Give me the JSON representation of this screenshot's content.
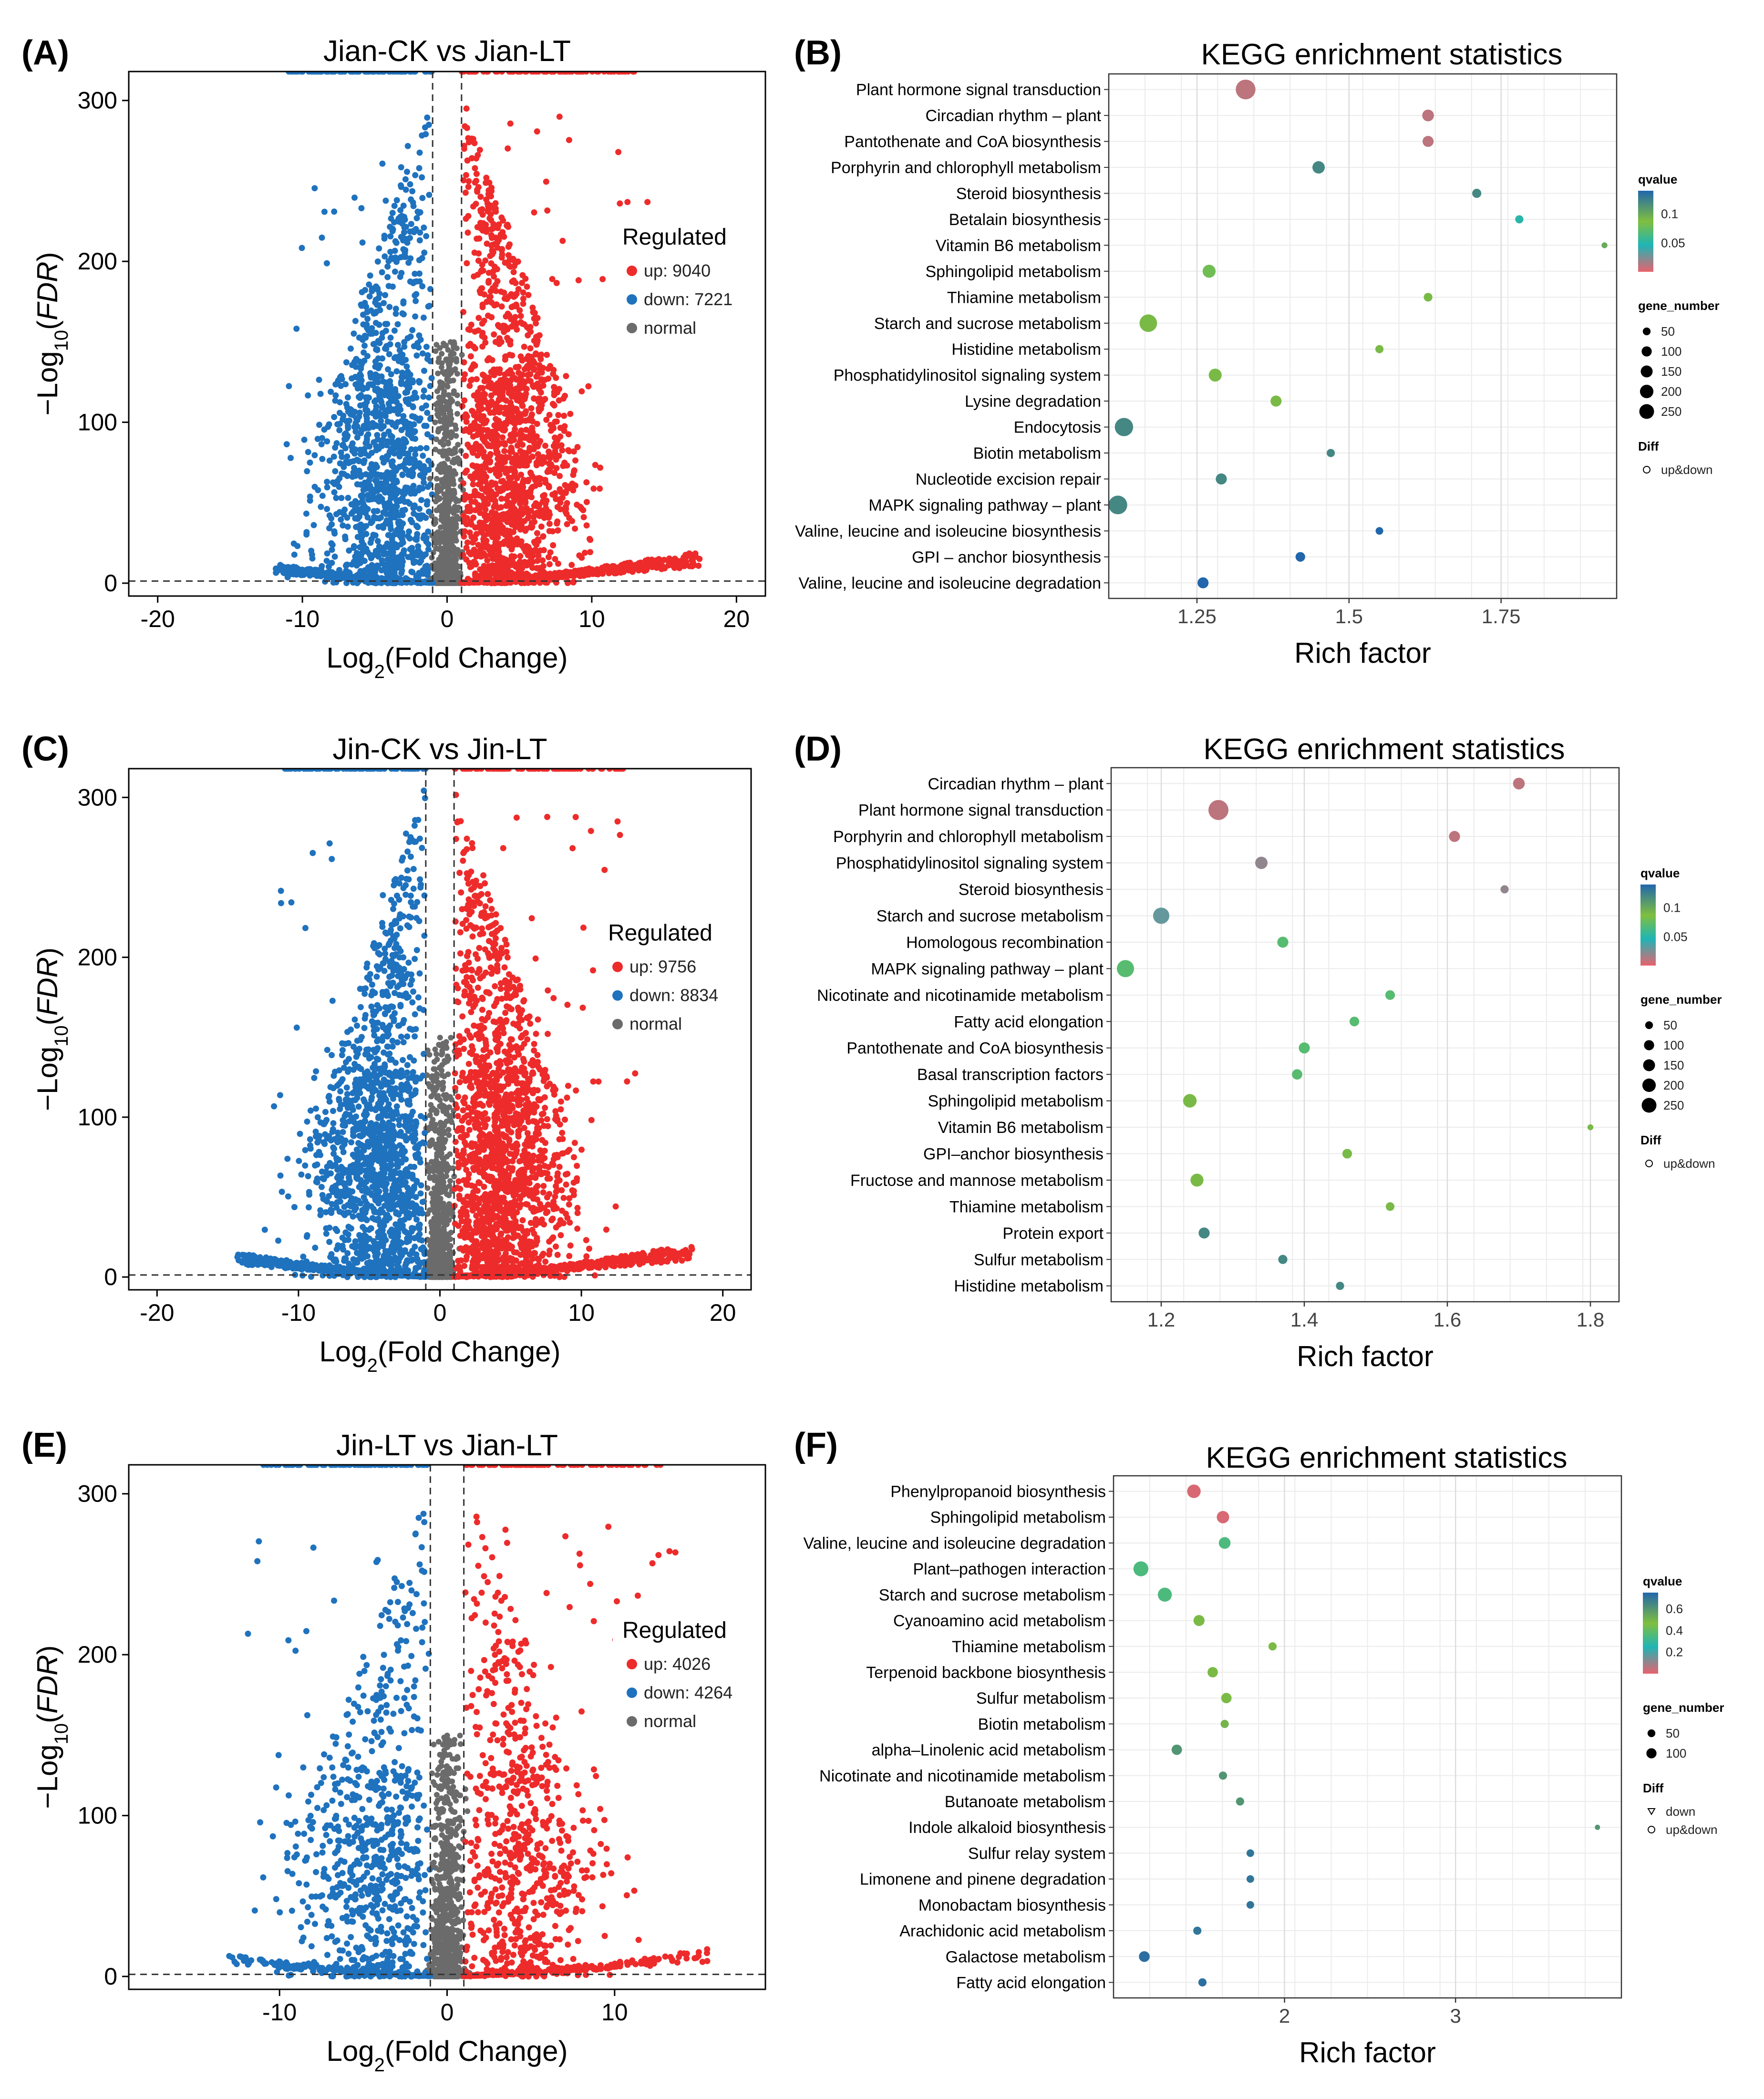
{
  "panels": {
    "A": {
      "letter": "(A)"
    },
    "B": {
      "letter": "(B)"
    },
    "C": {
      "letter": "(C)"
    },
    "D": {
      "letter": "(D)"
    },
    "E": {
      "letter": "(E)"
    },
    "F": {
      "letter": "(F)"
    }
  },
  "colors": {
    "up": "#EE2B2B",
    "down": "#1F72BE",
    "normal": "#6B6B6B",
    "grad_high": "#2166AC",
    "grad_mid1": "#1FB5B5",
    "grad_mid2": "#7FBF3F",
    "grad_low": "#E8626E"
  },
  "chart_data": [
    {
      "id": "A",
      "type": "scatter",
      "subtype": "volcano",
      "title": "Jian-CK vs Jian-LT",
      "xlabel": "Log2(Fold Change)",
      "ylabel": "−Log10(FDR)",
      "xlim": [
        -22,
        22
      ],
      "ylim": [
        -8,
        318
      ],
      "xticks": [
        -20,
        -10,
        0,
        10,
        20
      ],
      "yticks": [
        0,
        100,
        200,
        300
      ],
      "legend_title": "Regulated",
      "legend": [
        "up: 9040",
        "down: 7221",
        "normal"
      ],
      "counts": {
        "up": 9040,
        "down": 7221
      },
      "thresholds": {
        "log2fc": [
          -1,
          1
        ],
        "neglog10fdr": 1.3
      },
      "x_range": [
        -12,
        17.5
      ],
      "y_max": 308
    },
    {
      "id": "C",
      "type": "scatter",
      "subtype": "volcano",
      "title": "Jin-CK vs Jin-LT",
      "xlabel": "Log2(Fold Change)",
      "ylabel": "−Log10(FDR)",
      "xlim": [
        -22,
        22
      ],
      "ylim": [
        -8,
        318
      ],
      "xticks": [
        -20,
        -10,
        0,
        10,
        20
      ],
      "yticks": [
        0,
        100,
        200,
        300
      ],
      "legend_title": "Regulated",
      "legend": [
        "up: 9756",
        "down: 8834",
        "normal"
      ],
      "counts": {
        "up": 9756,
        "down": 8834
      },
      "thresholds": {
        "log2fc": [
          -1,
          1
        ],
        "neglog10fdr": 1.3
      },
      "x_range": [
        -14.5,
        18
      ],
      "y_max": 308
    },
    {
      "id": "E",
      "type": "scatter",
      "subtype": "volcano",
      "title": "Jin-LT vs Jian-LT",
      "xlabel": "Log2(Fold Change)",
      "ylabel": "−Log10(FDR)",
      "xlim": [
        -19,
        19
      ],
      "ylim": [
        -8,
        318
      ],
      "xticks": [
        -10,
        0,
        10
      ],
      "yticks": [
        0,
        100,
        200,
        300
      ],
      "legend_title": "Regulated",
      "legend": [
        "up: 4026",
        "down: 4264",
        "normal"
      ],
      "counts": {
        "up": 4026,
        "down": 4264
      },
      "thresholds": {
        "log2fc": [
          -1,
          1
        ],
        "neglog10fdr": 1.3
      },
      "x_range": [
        -13,
        15.8
      ],
      "y_max": 308
    },
    {
      "id": "B",
      "type": "scatter",
      "subtype": "kegg_bubble",
      "title": "KEGG enrichment statistics",
      "xlabel": "Rich factor",
      "xlim": [
        1.105,
        1.94
      ],
      "xticks": [
        1.25,
        1.5,
        1.75
      ],
      "qvalue_range": [
        0,
        0.14
      ],
      "qvalue_ticks": [
        0.05,
        0.1
      ],
      "gene_number_legend": [
        50,
        100,
        150,
        200,
        250
      ],
      "diff_legend": [
        "up&down"
      ],
      "terms": [
        "Plant hormone signal transduction",
        "Circadian rhythm – plant",
        "Pantothenate and CoA biosynthesis",
        "Porphyrin and chlorophyll metabolism",
        "Steroid biosynthesis",
        "Betalain biosynthesis",
        "Vitamin B6 metabolism",
        "Sphingolipid metabolism",
        "Thiamine metabolism",
        "Starch and sucrose metabolism",
        "Histidine metabolism",
        "Phosphatidylinositol signaling system",
        "Lysine degradation",
        "Endocytosis",
        "Biotin metabolism",
        "Nucleotide excision repair",
        "MAPK signaling pathway – plant",
        "Valine, leucine and isoleucine biosynthesis",
        "GPI – anchor biosynthesis",
        "Valine, leucine and isoleucine degradation"
      ],
      "rich_factor": [
        1.33,
        1.63,
        1.63,
        1.45,
        1.71,
        1.78,
        1.92,
        1.27,
        1.63,
        1.17,
        1.55,
        1.28,
        1.38,
        1.13,
        1.47,
        1.29,
        1.12,
        1.55,
        1.42,
        1.26
      ],
      "gene_number": [
        250,
        70,
        60,
        80,
        35,
        25,
        8,
        90,
        30,
        190,
        25,
        90,
        60,
        210,
        25,
        60,
        220,
        20,
        40,
        60
      ],
      "qvalue": [
        0.01,
        0.01,
        0.01,
        0.12,
        0.12,
        0.05,
        0.1,
        0.08,
        0.09,
        0.09,
        0.09,
        0.09,
        0.09,
        0.12,
        0.12,
        0.12,
        0.12,
        0.14,
        0.14,
        0.14
      ]
    },
    {
      "id": "D",
      "type": "scatter",
      "subtype": "kegg_bubble",
      "title": "KEGG enrichment statistics",
      "xlabel": "Rich factor",
      "xlim": [
        1.13,
        1.84
      ],
      "xticks": [
        1.2,
        1.4,
        1.6,
        1.8
      ],
      "qvalue_range": [
        0,
        0.14
      ],
      "qvalue_ticks": [
        0.05,
        0.1
      ],
      "gene_number_legend": [
        50,
        100,
        150,
        200,
        250
      ],
      "diff_legend": [
        "up&down"
      ],
      "terms": [
        "Circadian rhythm – plant",
        "Plant hormone signal transduction",
        "Porphyrin and chlorophyll metabolism",
        "Phosphatidylinositol signaling system",
        "Steroid biosynthesis",
        "Starch and sucrose metabolism",
        "Homologous recombination",
        "MAPK signaling pathway – plant",
        "Nicotinate and nicotinamide metabolism",
        "Fatty acid elongation",
        "Pantothenate and CoA biosynthesis",
        "Basal transcription factors",
        "Sphingolipid metabolism",
        "Vitamin B6 metabolism",
        "GPI–anchor biosynthesis",
        "Fructose and mannose metabolism",
        "Thiamine metabolism",
        "Protein export",
        "Sulfur metabolism",
        "Histidine metabolism"
      ],
      "rich_factor": [
        1.7,
        1.28,
        1.61,
        1.34,
        1.68,
        1.2,
        1.37,
        1.15,
        1.52,
        1.47,
        1.4,
        1.39,
        1.24,
        1.8,
        1.46,
        1.25,
        1.52,
        1.26,
        1.37,
        1.45
      ],
      "gene_number": [
        70,
        260,
        60,
        80,
        25,
        160,
        60,
        180,
        40,
        40,
        60,
        50,
        100,
        8,
        40,
        90,
        30,
        60,
        35,
        25
      ],
      "qvalue": [
        0.01,
        0.01,
        0.01,
        0.02,
        0.02,
        0.03,
        0.07,
        0.07,
        0.07,
        0.07,
        0.07,
        0.07,
        0.09,
        0.09,
        0.09,
        0.09,
        0.09,
        0.12,
        0.12,
        0.12
      ]
    },
    {
      "id": "F",
      "type": "scatter",
      "subtype": "kegg_bubble",
      "title": "KEGG enrichment statistics",
      "xlabel": "Rich factor",
      "xlim": [
        1.0,
        3.97
      ],
      "xticks": [
        2,
        3
      ],
      "qvalue_range": [
        0,
        0.75
      ],
      "qvalue_ticks": [
        0.2,
        0.4,
        0.6
      ],
      "gene_number_legend": [
        50,
        100
      ],
      "diff_legend": [
        "down",
        "up&down"
      ],
      "terms": [
        "Phenylpropanoid biosynthesis",
        "Sphingolipid metabolism",
        "Valine, leucine and isoleucine degradation",
        "Plant–pathogen interaction",
        "Starch and sucrose metabolism",
        "Cyanoamino acid metabolism",
        "Thiamine metabolism",
        "Terpenoid backbone biosynthesis",
        "Sulfur metabolism",
        "Biotin metabolism",
        "alpha–Linolenic acid metabolism",
        "Nicotinate and nicotinamide metabolism",
        "Butanoate metabolism",
        "Indole alkaloid biosynthesis",
        "Sulfur relay system",
        "Limonene and pinene degradation",
        "Monobactam biosynthesis",
        "Arachidonic acid metabolism",
        "Galactose metabolism",
        "Fatty acid elongation"
      ],
      "rich_factor": [
        1.47,
        1.64,
        1.65,
        1.16,
        1.3,
        1.5,
        1.93,
        1.58,
        1.66,
        1.65,
        1.37,
        1.64,
        1.74,
        3.83,
        1.8,
        1.8,
        1.8,
        1.49,
        1.18,
        1.52
      ],
      "gene_number": [
        100,
        80,
        70,
        130,
        110,
        60,
        25,
        50,
        50,
        25,
        50,
        25,
        25,
        5,
        20,
        20,
        20,
        25,
        55,
        25
      ],
      "qvalue": [
        0.02,
        0.02,
        0.35,
        0.35,
        0.35,
        0.48,
        0.48,
        0.48,
        0.48,
        0.5,
        0.6,
        0.6,
        0.6,
        0.6,
        0.7,
        0.7,
        0.7,
        0.7,
        0.72,
        0.72
      ]
    }
  ]
}
